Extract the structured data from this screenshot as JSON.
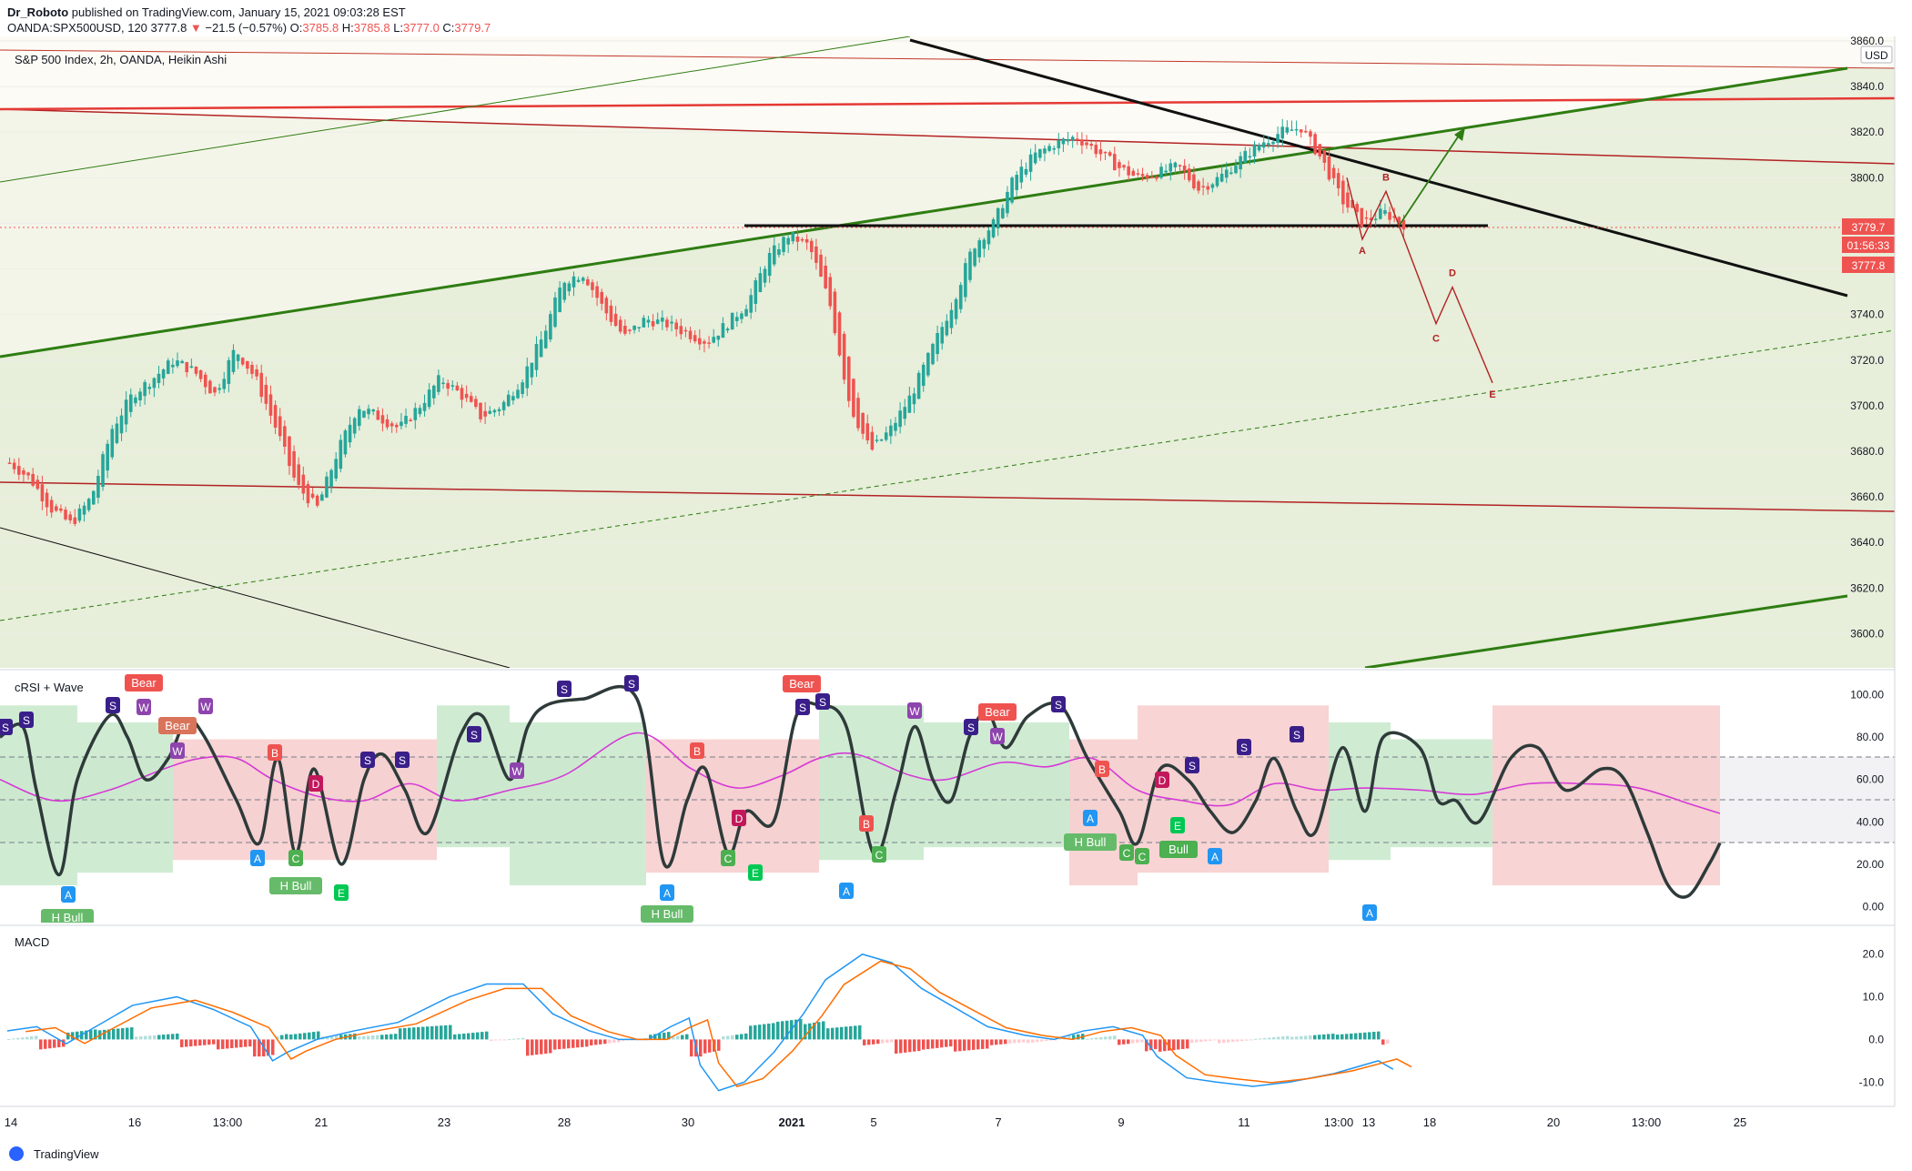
{
  "header": {
    "author": "Dr_Roboto",
    "published": "published on TradingView.com, January 15, 2021 09:03:28 EST",
    "symbol": "OANDA:SPX500USD, 120",
    "last": "3777.8",
    "change": "−21.5 (−0.57%)",
    "o_label": "O:",
    "o_val": "3785.8",
    "h_label": "H:",
    "h_val": "3785.8",
    "l_label": "L:",
    "l_val": "3777.0",
    "c_label": "C:",
    "c_val": "3779.7"
  },
  "main_pane": {
    "legend": "S&P 500 Index, 2h, OANDA, Heikin Ashi",
    "currency": "USD",
    "price_tag": "3779.7",
    "countdown": "01:56:33",
    "low_tag": "3777.8",
    "wave_labels": [
      "A",
      "B",
      "C",
      "D",
      "E",
      "A"
    ]
  },
  "crsi_pane": {
    "legend": "cRSI + Wave",
    "signals": [
      "Bear",
      "Bear",
      "Bear",
      "Bear",
      "H Bull",
      "H Bull",
      "H Bull",
      "H Bull",
      "Bull"
    ]
  },
  "macd_pane": {
    "legend": "MACD"
  },
  "time_axis": [
    "14",
    "16",
    "13:00",
    "21",
    "23",
    "28",
    "30",
    "2021",
    "5",
    "7",
    "9",
    "11",
    "13",
    "13:00",
    "18",
    "20",
    "13:00",
    "25"
  ],
  "footer": {
    "brand": "TradingView"
  },
  "colors": {
    "bull_candle": "#26a69a",
    "bear_candle": "#ef5350",
    "upper_channel": "#b22222",
    "trend_green": "#2e7d12",
    "resistance_red": "#e53935",
    "crsi_line": "#2f3a3a",
    "crsi_signal": "#d63ad6",
    "macd_line": "#2196f3",
    "signal_line": "#ff6d00"
  },
  "chart_data": [
    {
      "type": "candlestick",
      "title": "S&P 500 Index, 2h, OANDA, Heikin Ashi",
      "ylabel": "USD",
      "ylim": [
        3585,
        3862
      ],
      "y_ticks": [
        3600,
        3620,
        3640,
        3660,
        3680,
        3700,
        3720,
        3740,
        3760,
        3780,
        3800,
        3820,
        3840,
        3860
      ],
      "x_categories": [
        "14",
        "16",
        "13:00",
        "21",
        "23",
        "28",
        "30",
        "2021",
        "5",
        "7",
        "9",
        "11",
        "13",
        "13:00",
        "18",
        "20",
        "13:00",
        "25"
      ],
      "series": [
        {
          "name": "heikin_ashi_close",
          "approx_path": [
            3675,
            3668,
            3655,
            3648,
            3660,
            3690,
            3705,
            3712,
            3720,
            3715,
            3705,
            3725,
            3712,
            3690,
            3665,
            3655,
            3680,
            3700,
            3695,
            3690,
            3700,
            3712,
            3705,
            3695,
            3700,
            3712,
            3730,
            3755,
            3758,
            3742,
            3730,
            3738,
            3736,
            3732,
            3728,
            3736,
            3745,
            3765,
            3775,
            3770,
            3745,
            3700,
            3680,
            3690,
            3705,
            3725,
            3745,
            3770,
            3780,
            3800,
            3810,
            3815,
            3818,
            3812,
            3805,
            3800,
            3802,
            3805,
            3795,
            3800,
            3808,
            3815,
            3820,
            3822,
            3808,
            3790,
            3780,
            3785,
            3779.7
          ]
        }
      ],
      "levels": {
        "current_price": 3779.7,
        "horizontal_support": 3780
      },
      "wave_projection": {
        "labels": [
          "A",
          "B",
          "C",
          "D",
          "E"
        ],
        "values": [
          3773,
          3794,
          3736,
          3752,
          3710
        ]
      }
    },
    {
      "type": "line",
      "title": "cRSI + Wave",
      "ylim": [
        -5,
        105
      ],
      "y_ticks": [
        0,
        20,
        40,
        60,
        80,
        100
      ],
      "bands": [
        30,
        50,
        70
      ],
      "markers": [
        "S",
        "W",
        "A",
        "B",
        "C",
        "D",
        "E",
        "Bear",
        "H Bull",
        "Bull"
      ]
    },
    {
      "type": "bar",
      "title": "MACD",
      "ylim": [
        -14,
        24
      ],
      "y_ticks": [
        -10,
        0,
        10,
        20
      ],
      "series": [
        {
          "name": "histogram"
        },
        {
          "name": "macd"
        },
        {
          "name": "signal"
        }
      ]
    }
  ]
}
